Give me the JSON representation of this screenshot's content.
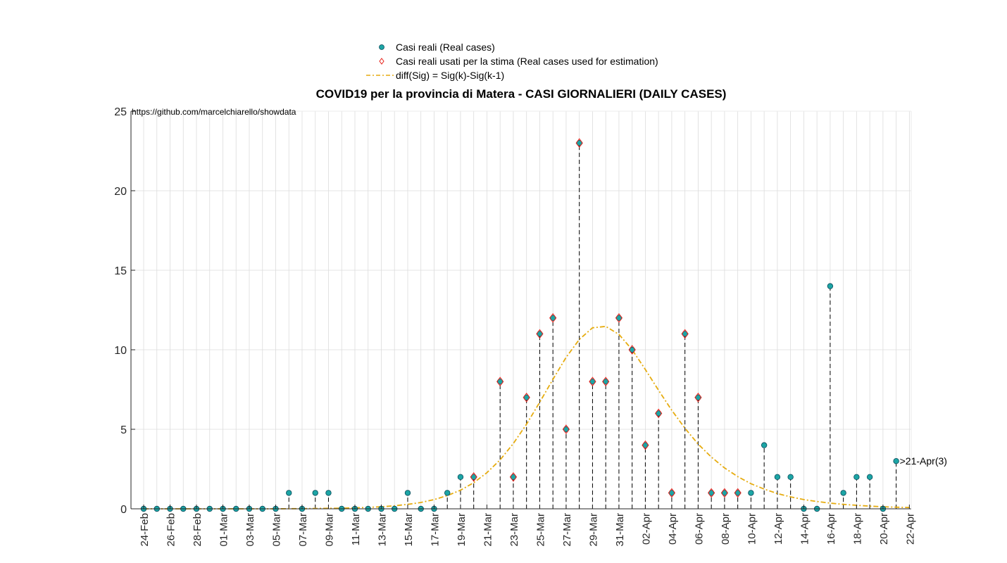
{
  "chart_data": {
    "type": "scatter",
    "title": "COVID19 per la provincia di Matera - CASI GIORNALIERI (DAILY CASES)",
    "watermark": "https://github.com/marcelchiarello/showdata",
    "ylim": [
      0,
      25
    ],
    "yticks": [
      0,
      5,
      10,
      15,
      20,
      25
    ],
    "grid": true,
    "legend_position": "top",
    "legend": [
      {
        "label": "Casi reali (Real cases)",
        "marker": "filled-circle",
        "color": "#1ca5a5"
      },
      {
        "label": "Casi reali usati per la stima (Real cases used for estimation)",
        "marker": "diamond",
        "color": "#e8231b"
      },
      {
        "label": "diff(Sig) = Sig(k)-Sig(k-1)",
        "marker": "dash-dot-line",
        "color": "#e6ac10"
      }
    ],
    "xtick_labels": [
      "24-Feb",
      "26-Feb",
      "28-Feb",
      "01-Mar",
      "03-Mar",
      "05-Mar",
      "07-Mar",
      "09-Mar",
      "11-Mar",
      "13-Mar",
      "15-Mar",
      "17-Mar",
      "19-Mar",
      "21-Mar",
      "23-Mar",
      "25-Mar",
      "27-Mar",
      "29-Mar",
      "31-Mar",
      "02-Apr",
      "04-Apr",
      "06-Apr",
      "08-Apr",
      "10-Apr",
      "12-Apr",
      "14-Apr",
      "16-Apr",
      "18-Apr",
      "20-Apr",
      "22-Apr"
    ],
    "x_dates": [
      "24-Feb",
      "25-Feb",
      "26-Feb",
      "27-Feb",
      "28-Feb",
      "29-Feb",
      "01-Mar",
      "02-Mar",
      "03-Mar",
      "04-Mar",
      "05-Mar",
      "06-Mar",
      "07-Mar",
      "08-Mar",
      "09-Mar",
      "10-Mar",
      "11-Mar",
      "12-Mar",
      "13-Mar",
      "14-Mar",
      "15-Mar",
      "16-Mar",
      "17-Mar",
      "18-Mar",
      "19-Mar",
      "20-Mar",
      "21-Mar",
      "22-Mar",
      "23-Mar",
      "24-Mar",
      "25-Mar",
      "26-Mar",
      "27-Mar",
      "28-Mar",
      "29-Mar",
      "30-Mar",
      "31-Mar",
      "01-Apr",
      "02-Apr",
      "03-Apr",
      "04-Apr",
      "05-Apr",
      "06-Apr",
      "07-Apr",
      "08-Apr",
      "09-Apr",
      "10-Apr",
      "11-Apr",
      "12-Apr",
      "13-Apr",
      "14-Apr",
      "15-Apr",
      "16-Apr",
      "17-Apr",
      "18-Apr",
      "19-Apr",
      "20-Apr",
      "21-Apr",
      "22-Apr"
    ],
    "real_cases": [
      0,
      0,
      0,
      0,
      0,
      0,
      0,
      0,
      0,
      0,
      0,
      1,
      0,
      1,
      1,
      0,
      0,
      0,
      0,
      0,
      1,
      0,
      0,
      1,
      2,
      2,
      null,
      8,
      2,
      7,
      11,
      12,
      5,
      23,
      8,
      8,
      12,
      10,
      4,
      6,
      1,
      11,
      7,
      1,
      1,
      1,
      1,
      4,
      2,
      2,
      0,
      0,
      14,
      1,
      2,
      2,
      0,
      3,
      null
    ],
    "estimation_cases": [
      null,
      null,
      null,
      null,
      null,
      null,
      null,
      null,
      null,
      null,
      null,
      null,
      null,
      null,
      null,
      null,
      null,
      null,
      null,
      null,
      null,
      null,
      null,
      null,
      null,
      2,
      null,
      8,
      2,
      7,
      11,
      12,
      5,
      23,
      8,
      8,
      12,
      10,
      4,
      6,
      1,
      11,
      7,
      1,
      1,
      1,
      null,
      null,
      null,
      null,
      null,
      null,
      null,
      null,
      null,
      null,
      null,
      null,
      null
    ],
    "fit_diff_sig": [
      0,
      0,
      0,
      0,
      0,
      0,
      0,
      0,
      0,
      0,
      0,
      0.01,
      0.01,
      0.02,
      0.03,
      0.04,
      0.06,
      0.09,
      0.13,
      0.19,
      0.28,
      0.4,
      0.58,
      0.83,
      1.17,
      1.64,
      2.27,
      3.08,
      4.1,
      5.32,
      6.7,
      8.14,
      9.52,
      10.65,
      11.38,
      11.47,
      10.97,
      10.0,
      8.76,
      7.45,
      6.2,
      5.06,
      4.07,
      3.25,
      2.57,
      2.02,
      1.58,
      1.24,
      0.96,
      0.75,
      0.58,
      0.46,
      0.36,
      0.28,
      0.22,
      0.17,
      0.13,
      0.1,
      0.08
    ],
    "annotation": {
      "text": ">21-Apr(3)",
      "date": "21-Apr",
      "value": 3
    }
  }
}
